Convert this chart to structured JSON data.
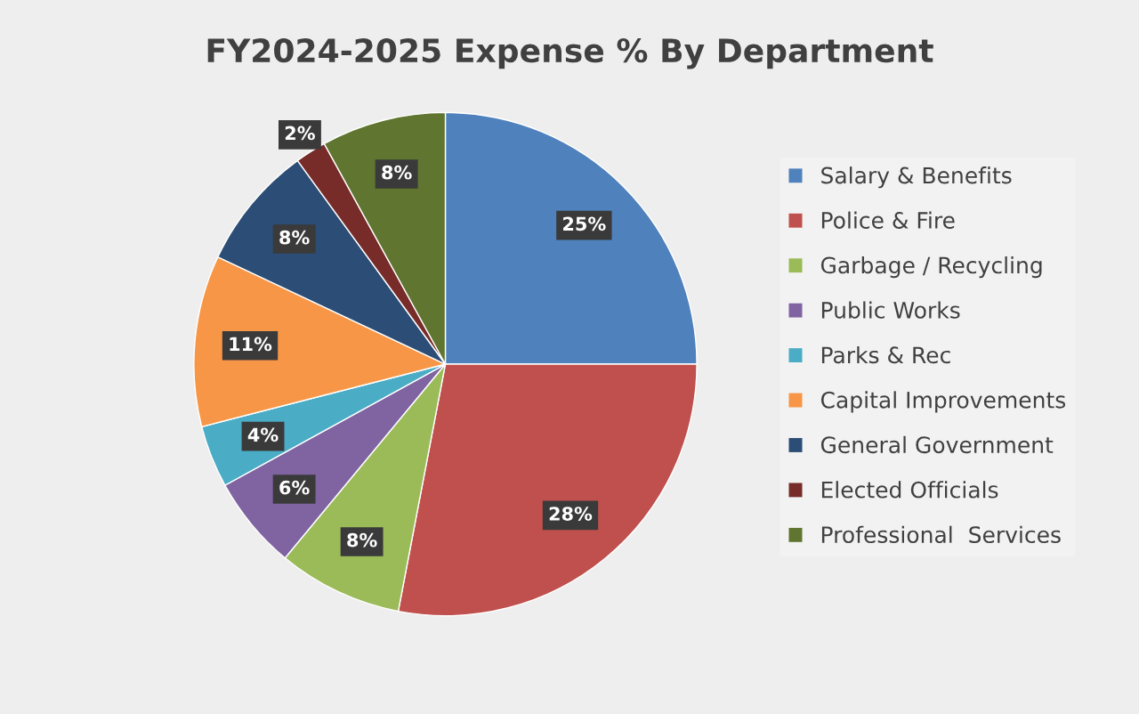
{
  "chart_data": {
    "type": "pie",
    "title": "FY2024-2025 Expense % By Department",
    "categories": [
      "Salary & Benefits",
      "Police & Fire",
      "Garbage / Recycling",
      "Public Works",
      "Parks & Rec",
      "Capital Improvements",
      "General Government",
      "Elected Officials",
      "Professional  Services"
    ],
    "values": [
      25,
      28,
      8,
      6,
      4,
      11,
      8,
      2,
      8
    ],
    "colors": [
      "#4f81bd",
      "#c0504d",
      "#9bbb59",
      "#8064a2",
      "#4bacc6",
      "#f79646",
      "#2c4d75",
      "#772c2a",
      "#5f7530"
    ],
    "value_labels": [
      "25%",
      "28%",
      "8%",
      "6%",
      "4%",
      "11%",
      "8%",
      "2%",
      "8%"
    ],
    "legend": "right"
  }
}
